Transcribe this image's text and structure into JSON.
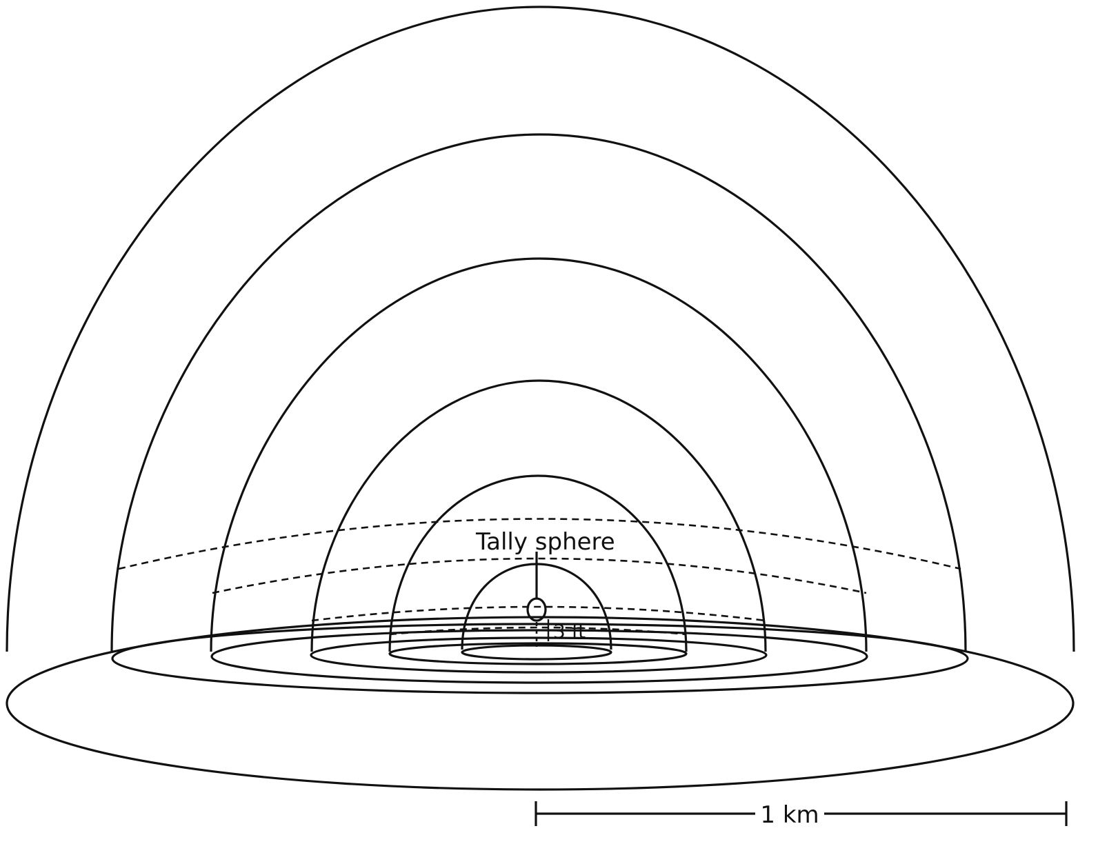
{
  "labels": {
    "tally": "Tally sphere",
    "height": "3 ft",
    "scale": "1 km"
  },
  "colors": {
    "line": "#111111",
    "background": "#ffffff"
  }
}
